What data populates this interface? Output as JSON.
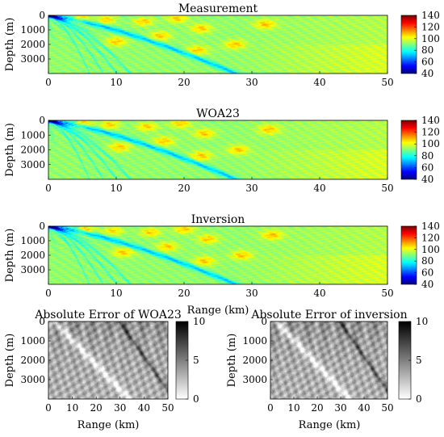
{
  "chart_data": [
    {
      "type": "heatmap",
      "title": "Measurement",
      "xlabel": "",
      "ylabel": "Depth (m)",
      "xlim": [
        0,
        50
      ],
      "ylim": [
        0,
        4000
      ],
      "x_ticks": [
        "0",
        "10",
        "20",
        "30",
        "40",
        "50"
      ],
      "y_ticks": [
        "0",
        "1000",
        "2000",
        "3000"
      ],
      "colorbar": {
        "ticks": [
          "140",
          "120",
          "100",
          "80",
          "60",
          "40"
        ],
        "range": [
          40,
          140
        ],
        "colormap": "jet"
      }
    },
    {
      "type": "heatmap",
      "title": "WOA23",
      "xlabel": "",
      "ylabel": "Depth (m)",
      "xlim": [
        0,
        50
      ],
      "ylim": [
        0,
        4000
      ],
      "x_ticks": [
        "0",
        "10",
        "20",
        "30",
        "40",
        "50"
      ],
      "y_ticks": [
        "0",
        "1000",
        "2000",
        "3000"
      ],
      "colorbar": {
        "ticks": [
          "140",
          "120",
          "100",
          "80",
          "60",
          "40"
        ],
        "range": [
          40,
          140
        ],
        "colormap": "jet"
      }
    },
    {
      "type": "heatmap",
      "title": "Inversion",
      "xlabel": "Range (km)",
      "ylabel": "Depth (m)",
      "xlim": [
        0,
        50
      ],
      "ylim": [
        0,
        4000
      ],
      "x_ticks": [
        "0",
        "10",
        "20",
        "30",
        "40",
        "50"
      ],
      "y_ticks": [
        "0",
        "1000",
        "2000",
        "3000"
      ],
      "colorbar": {
        "ticks": [
          "140",
          "120",
          "100",
          "80",
          "60",
          "40"
        ],
        "range": [
          40,
          140
        ],
        "colormap": "jet"
      }
    },
    {
      "type": "heatmap",
      "title": "Absolute Error of WOA23",
      "xlabel": "Range (km)",
      "ylabel": "Depth (m)",
      "xlim": [
        0,
        50
      ],
      "ylim": [
        0,
        4000
      ],
      "x_ticks": [
        "0",
        "10",
        "20",
        "30",
        "40",
        "50"
      ],
      "y_ticks": [
        "0",
        "1000",
        "2000",
        "3000"
      ],
      "colorbar": {
        "ticks": [
          "10",
          "5",
          "0"
        ],
        "range": [
          0,
          10
        ],
        "colormap": "gray"
      }
    },
    {
      "type": "heatmap",
      "title": "Absolute Error of inversion",
      "xlabel": "Range (km)",
      "ylabel": "Depth (m)",
      "xlim": [
        0,
        50
      ],
      "ylim": [
        0,
        4000
      ],
      "x_ticks": [
        "0",
        "10",
        "20",
        "30",
        "40",
        "50"
      ],
      "y_ticks": [
        "0",
        "1000",
        "2000",
        "3000"
      ],
      "colorbar": {
        "ticks": [
          "10",
          "5",
          "0"
        ],
        "range": [
          0,
          10
        ],
        "colormap": "gray"
      }
    }
  ]
}
